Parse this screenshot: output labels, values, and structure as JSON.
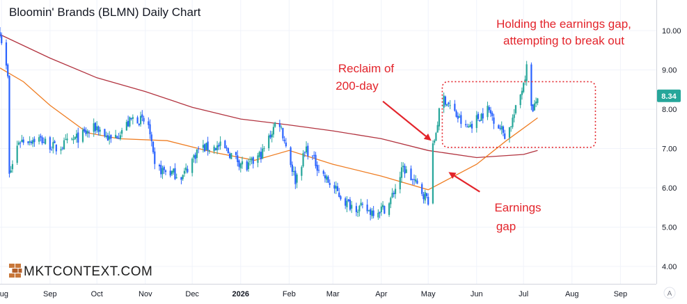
{
  "chart_data": {
    "type": "candlestick",
    "title": "Bloomin' Brands (BLMN) Daily Chart",
    "yticks": [
      "10.00",
      "9.00",
      "8.00",
      "7.00",
      "6.00",
      "5.00",
      "4.00"
    ],
    "ylim": [
      3.55,
      10.75
    ],
    "xlim": [
      "2025-07-31",
      "2026-09-24"
    ],
    "xticks": [
      {
        "label": "Aug",
        "date": "2025-08-01",
        "bold": false
      },
      {
        "label": "Sep",
        "date": "2025-09-01",
        "bold": false
      },
      {
        "label": "Oct",
        "date": "2025-10-01",
        "bold": false
      },
      {
        "label": "Nov",
        "date": "2025-11-01",
        "bold": false
      },
      {
        "label": "Dec",
        "date": "2025-12-01",
        "bold": false
      },
      {
        "label": "2026",
        "date": "2026-01-01",
        "bold": true
      },
      {
        "label": "Feb",
        "date": "2026-02-01",
        "bold": false
      },
      {
        "label": "Mar",
        "date": "2026-03-01",
        "bold": false
      },
      {
        "label": "Apr",
        "date": "2026-04-01",
        "bold": false
      },
      {
        "label": "May",
        "date": "2026-05-01",
        "bold": false
      },
      {
        "label": "Jun",
        "date": "2026-06-01",
        "bold": false
      },
      {
        "label": "Jul",
        "date": "2026-07-01",
        "bold": false
      },
      {
        "label": "Aug",
        "date": "2026-08-01",
        "bold": false
      },
      {
        "label": "Sep",
        "date": "2026-09-01",
        "bold": false
      }
    ],
    "last_price": "8.34",
    "colors": {
      "up": "#26a69a",
      "down": "#2962ff",
      "ma200": "#b2333f",
      "ma50": "#ef7d22",
      "annotation": "#e3242b",
      "price_tag": "#26a69a"
    },
    "close_anchors": [
      {
        "date": "2025-07-31",
        "close": 10.0
      },
      {
        "date": "2025-08-05",
        "close": 8.8
      },
      {
        "date": "2025-08-06",
        "close": 6.3
      },
      {
        "date": "2025-08-12",
        "close": 7.2
      },
      {
        "date": "2025-08-25",
        "close": 7.25
      },
      {
        "date": "2025-09-05",
        "close": 7.0
      },
      {
        "date": "2025-09-20",
        "close": 7.3
      },
      {
        "date": "2025-10-01",
        "close": 7.55
      },
      {
        "date": "2025-10-10",
        "close": 7.2
      },
      {
        "date": "2025-10-25",
        "close": 7.8
      },
      {
        "date": "2025-11-03",
        "close": 7.6
      },
      {
        "date": "2025-11-07",
        "close": 6.5
      },
      {
        "date": "2025-11-25",
        "close": 6.3
      },
      {
        "date": "2025-12-05",
        "close": 7.0
      },
      {
        "date": "2025-12-20",
        "close": 7.05
      },
      {
        "date": "2026-01-05",
        "close": 6.5
      },
      {
        "date": "2026-01-15",
        "close": 6.9
      },
      {
        "date": "2026-01-25",
        "close": 7.8
      },
      {
        "date": "2026-02-05",
        "close": 6.2
      },
      {
        "date": "2026-02-12",
        "close": 7.0
      },
      {
        "date": "2026-02-25",
        "close": 6.2
      },
      {
        "date": "2026-03-10",
        "close": 5.6
      },
      {
        "date": "2026-03-25",
        "close": 5.4
      },
      {
        "date": "2026-04-05",
        "close": 5.5
      },
      {
        "date": "2026-04-15",
        "close": 6.5
      },
      {
        "date": "2026-04-25",
        "close": 6.0
      },
      {
        "date": "2026-05-01",
        "close": 5.7
      },
      {
        "date": "2026-05-04",
        "close": 7.0
      },
      {
        "date": "2026-05-10",
        "close": 8.35
      },
      {
        "date": "2026-05-25",
        "close": 7.5
      },
      {
        "date": "2026-06-08",
        "close": 8.0
      },
      {
        "date": "2026-06-20",
        "close": 7.3
      },
      {
        "date": "2026-06-28",
        "close": 8.2
      },
      {
        "date": "2026-07-03",
        "close": 9.05
      },
      {
        "date": "2026-07-07",
        "close": 7.9
      },
      {
        "date": "2026-07-10",
        "close": 8.34
      }
    ],
    "ma200": [
      {
        "date": "2025-07-31",
        "value": 9.9
      },
      {
        "date": "2025-09-01",
        "value": 9.3
      },
      {
        "date": "2025-10-01",
        "value": 8.8
      },
      {
        "date": "2025-11-01",
        "value": 8.45
      },
      {
        "date": "2025-12-01",
        "value": 8.05
      },
      {
        "date": "2026-01-01",
        "value": 7.75
      },
      {
        "date": "2026-02-01",
        "value": 7.6
      },
      {
        "date": "2026-03-01",
        "value": 7.45
      },
      {
        "date": "2026-04-01",
        "value": 7.25
      },
      {
        "date": "2026-05-01",
        "value": 6.95
      },
      {
        "date": "2026-06-01",
        "value": 6.77
      },
      {
        "date": "2026-07-01",
        "value": 6.85
      },
      {
        "date": "2026-07-10",
        "value": 6.95
      }
    ],
    "ma50": [
      {
        "date": "2025-07-31",
        "value": 9.05
      },
      {
        "date": "2025-08-15",
        "value": 8.7
      },
      {
        "date": "2025-09-01",
        "value": 8.1
      },
      {
        "date": "2025-09-25",
        "value": 7.4
      },
      {
        "date": "2025-10-15",
        "value": 7.25
      },
      {
        "date": "2025-11-15",
        "value": 7.2
      },
      {
        "date": "2025-12-15",
        "value": 6.9
      },
      {
        "date": "2026-01-10",
        "value": 6.7
      },
      {
        "date": "2026-02-01",
        "value": 6.95
      },
      {
        "date": "2026-03-01",
        "value": 6.6
      },
      {
        "date": "2026-04-01",
        "value": 6.3
      },
      {
        "date": "2026-05-01",
        "value": 5.95
      },
      {
        "date": "2026-06-01",
        "value": 6.6
      },
      {
        "date": "2026-06-20",
        "value": 7.2
      },
      {
        "date": "2026-07-10",
        "value": 7.78
      }
    ],
    "annotations": {
      "holding_gap": [
        "Holding the earnings gap,",
        "attempting to break out"
      ],
      "reclaim": [
        "Reclaim of",
        "200-day"
      ],
      "earnings_gap": [
        "Earnings",
        "gap"
      ]
    },
    "arrows": [
      {
        "name": "reclaim-arrow",
        "from": {
          "date": "2026-04-02",
          "value": 8.2
        },
        "to": {
          "date": "2026-05-03",
          "value": 7.2
        }
      },
      {
        "name": "earnings-gap-arrow",
        "from": {
          "date": "2026-06-03",
          "value": 5.9
        },
        "to": {
          "date": "2026-05-14",
          "value": 6.4
        }
      }
    ],
    "breakout_box": {
      "date_start": "2026-05-10",
      "date_end": "2026-08-16",
      "low": 7.03,
      "high": 8.7
    }
  },
  "watermark": {
    "text": "MKTCONTEXT.COM"
  },
  "corner_label": "A"
}
